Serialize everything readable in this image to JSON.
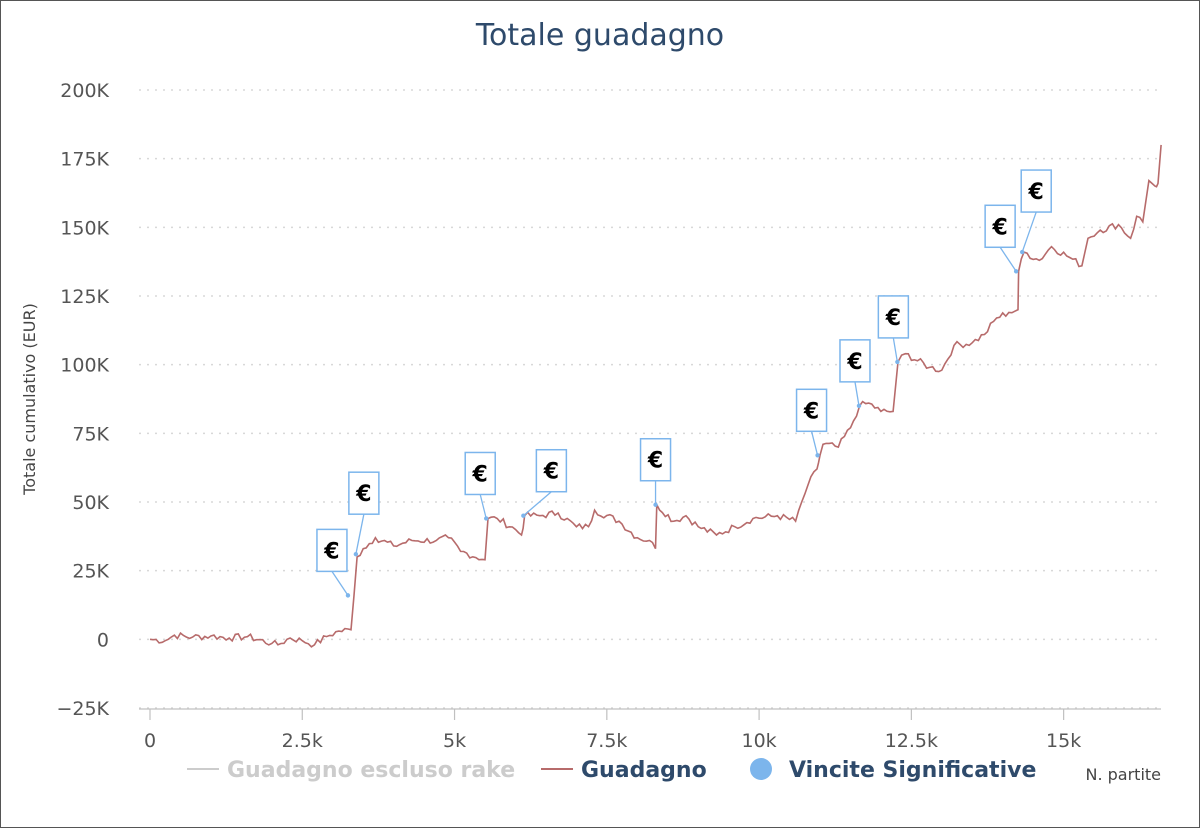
{
  "chart_data": {
    "type": "line",
    "title": "Totale guadagno",
    "ylabel": "Totale cumulativo (EUR)",
    "xlabel": "N. partite",
    "xlim": [
      0,
      16500
    ],
    "ylim": [
      -25000,
      200000
    ],
    "x_ticks": [
      0,
      2500,
      5000,
      7500,
      10000,
      12500,
      15000
    ],
    "x_tick_labels": [
      "0",
      "2.5k",
      "5k",
      "7.5k",
      "10k",
      "12.5k",
      "15k"
    ],
    "y_ticks": [
      -25000,
      0,
      25000,
      50000,
      75000,
      100000,
      125000,
      150000,
      175000,
      200000
    ],
    "y_tick_labels": [
      "−25K",
      "0",
      "25K",
      "50K",
      "75K",
      "100K",
      "125K",
      "150K",
      "175K",
      "200K"
    ],
    "grid": "horizontal-dotted",
    "legend": [
      {
        "name": "Guadagno escluso rake",
        "color": "#cccccc",
        "marker": "line",
        "text_color": "#cccccc"
      },
      {
        "name": "Guadagno",
        "color": "#b76b6b",
        "marker": "line",
        "text_color": "#2e4a6b"
      },
      {
        "name": "Vincite Significative",
        "color": "#7cb5ec",
        "marker": "circle",
        "text_color": "#2e4a6b"
      }
    ],
    "legend_position": "bottom",
    "series": [
      {
        "name": "Guadagno",
        "color": "#b76b6b",
        "points": [
          [
            0,
            0
          ],
          [
            250,
            -500
          ],
          [
            400,
            1500
          ],
          [
            700,
            800
          ],
          [
            1000,
            1200
          ],
          [
            1300,
            500
          ],
          [
            1600,
            1000
          ],
          [
            2000,
            -1500
          ],
          [
            2100,
            -2000
          ],
          [
            2300,
            500
          ],
          [
            2500,
            -500
          ],
          [
            2700,
            -2000
          ],
          [
            2900,
            1000
          ],
          [
            3100,
            3000
          ],
          [
            3300,
            3500
          ],
          [
            3350,
            16000
          ],
          [
            3400,
            30000
          ],
          [
            3500,
            33000
          ],
          [
            3700,
            37000
          ],
          [
            4000,
            34000
          ],
          [
            4300,
            36000
          ],
          [
            4700,
            36000
          ],
          [
            4900,
            37000
          ],
          [
            5100,
            32000
          ],
          [
            5500,
            29000
          ],
          [
            5550,
            44000
          ],
          [
            5700,
            44000
          ],
          [
            6000,
            40000
          ],
          [
            6100,
            38000
          ],
          [
            6150,
            45000
          ],
          [
            6400,
            45000
          ],
          [
            6700,
            46000
          ],
          [
            7000,
            41000
          ],
          [
            7200,
            41000
          ],
          [
            7300,
            47000
          ],
          [
            7700,
            43000
          ],
          [
            8000,
            37000
          ],
          [
            8200,
            36000
          ],
          [
            8300,
            33000
          ],
          [
            8320,
            49000
          ],
          [
            8600,
            43000
          ],
          [
            8800,
            45000
          ],
          [
            9000,
            41000
          ],
          [
            9300,
            38000
          ],
          [
            9600,
            41000
          ],
          [
            9900,
            44000
          ],
          [
            10300,
            45000
          ],
          [
            10600,
            43000
          ],
          [
            10700,
            50000
          ],
          [
            10800,
            56000
          ],
          [
            10950,
            62000
          ],
          [
            11000,
            67000
          ],
          [
            11050,
            71000
          ],
          [
            11300,
            70000
          ],
          [
            11500,
            77000
          ],
          [
            11650,
            85000
          ],
          [
            11800,
            86000
          ],
          [
            12000,
            83000
          ],
          [
            12200,
            83000
          ],
          [
            12280,
            101000
          ],
          [
            12400,
            104000
          ],
          [
            12800,
            99000
          ],
          [
            13000,
            98000
          ],
          [
            13200,
            107000
          ],
          [
            13500,
            108000
          ],
          [
            13700,
            111000
          ],
          [
            13900,
            117000
          ],
          [
            14100,
            119000
          ],
          [
            14250,
            120000
          ],
          [
            14260,
            134000
          ],
          [
            14350,
            141000
          ],
          [
            14600,
            138000
          ],
          [
            14800,
            143000
          ],
          [
            15100,
            139000
          ],
          [
            15300,
            136000
          ],
          [
            15400,
            146000
          ],
          [
            15600,
            149000
          ],
          [
            15900,
            151000
          ],
          [
            16100,
            146000
          ],
          [
            16200,
            154000
          ],
          [
            16300,
            152000
          ],
          [
            16400,
            167000
          ],
          [
            16500,
            165000
          ],
          [
            16550,
            166000
          ],
          [
            16600,
            180000
          ]
        ]
      },
      {
        "name": "Vincite Significative",
        "color": "#7cb5ec",
        "points": [
          [
            3250,
            16000
          ],
          [
            3380,
            31000
          ],
          [
            5520,
            44000
          ],
          [
            6130,
            45000
          ],
          [
            8300,
            49000
          ],
          [
            10960,
            67000
          ],
          [
            11640,
            85000
          ],
          [
            12270,
            101000
          ],
          [
            14220,
            134000
          ],
          [
            14320,
            141000
          ]
        ],
        "flag_label": "€"
      }
    ]
  }
}
